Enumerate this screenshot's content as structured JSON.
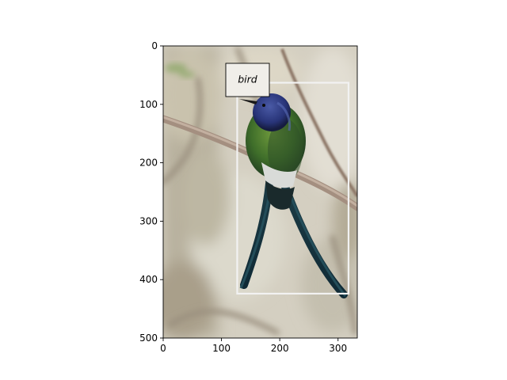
{
  "figure": {
    "type": "image-with-detection",
    "x_ticks": [
      "0",
      "100",
      "200",
      "300"
    ],
    "y_ticks": [
      "0",
      "100",
      "200",
      "300",
      "400",
      "500"
    ]
  },
  "image": {
    "subject": "hummingbird perched on a branch",
    "width_units": 333,
    "height_units": 500
  },
  "detection": {
    "label": "bird",
    "box_data": {
      "x_min": 127,
      "y_min": 63,
      "x_max": 318,
      "y_max": 424
    },
    "box_color": "#f2f2f2"
  },
  "colors": {
    "background": "#ffffff",
    "photo_bg": "#cfc9ba",
    "label_box": "#f0eee9"
  }
}
